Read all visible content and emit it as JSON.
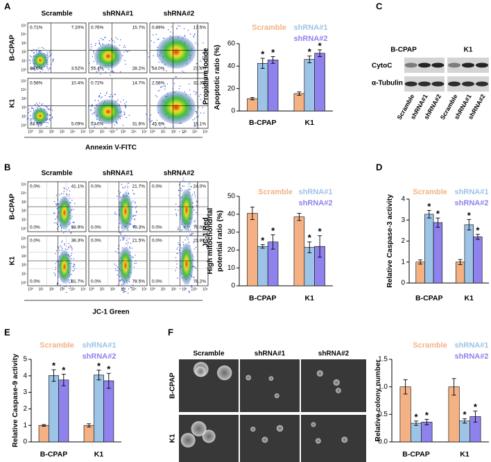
{
  "panel_labels": [
    "A",
    "B",
    "C",
    "D",
    "E",
    "F"
  ],
  "flow": [
    {
      "column_headers": [
        "Scramble",
        "shRNA#1",
        "shRNA#2"
      ],
      "row_labels": [
        "B-CPAP",
        "K1"
      ],
      "quadrants": [
        [
          [
            "0.71%",
            "7.20%",
            "88.6%",
            "3.52%"
          ],
          [
            "0.76%",
            "15.7%",
            "55.4%",
            "28.2%"
          ],
          [
            "0.89%",
            "17.5%",
            "54.0%",
            "27.6%"
          ]
        ],
        [
          [
            "0.58%",
            "10.4%",
            "83.9%",
            "5.09%"
          ],
          [
            "0.72%",
            "14.7%",
            "53.0%",
            "31.6%"
          ],
          [
            "2.58%",
            "32.3%",
            "45.9%",
            "19.1%"
          ]
        ]
      ],
      "tick_labels": [
        "10⁰",
        "10¹",
        "10²",
        "10³",
        "10⁴",
        "10⁵"
      ],
      "xlabel": "Annexin V-FITC",
      "ylabel": "Propidium Iodide"
    },
    {
      "column_headers": [
        "Scramble",
        "shRNA#1",
        "shRNA#2"
      ],
      "row_labels": [
        "B-CPAP",
        "K1"
      ],
      "quadrants": [
        [
          [
            "0.0%",
            "41.1%",
            "0.0%",
            "58.9%"
          ],
          [
            "0.0%",
            "21.7%",
            "0.0%",
            "78.3%"
          ],
          [
            "0.0%",
            "24.0%",
            "0.0%",
            "76.0%"
          ]
        ],
        [
          [
            "0.0%",
            "38.3%",
            "0.0%",
            "61.7%"
          ],
          [
            "0.0%",
            "21.5%",
            "0.0%",
            "78.5%"
          ],
          [
            "0.0%",
            "21.8%",
            "0.0%",
            "78.2%"
          ]
        ]
      ],
      "tick_labels": [
        "10⁰",
        "10¹",
        "10²",
        "10³",
        "10⁴",
        "10⁵"
      ],
      "xlabel": "JC-1 Green",
      "ylabel": "JC-1 Red"
    }
  ],
  "blot": {
    "cell_lines": [
      "B-CPAP",
      "K1"
    ],
    "proteins": [
      "CytoC",
      "α-Tubulin"
    ],
    "lanes": [
      "Scramble",
      "shRNA#1",
      "shRNA#2",
      "Scramble",
      "shRNA#1",
      "shRNA#2"
    ]
  },
  "colony": {
    "column_headers": [
      "Scramble",
      "shRNA#1",
      "shRNA#2"
    ],
    "row_labels": [
      "B-CPAP",
      "K1"
    ]
  },
  "chart_data": [
    {
      "type": "bar",
      "ylabel": [
        "Apoptotic ratio (%)"
      ],
      "categories": [
        "B-CPAP",
        "K1"
      ],
      "ylim": [
        0,
        60
      ],
      "yticks": [
        0,
        20,
        40,
        60
      ],
      "series": [
        {
          "name": "Scramble",
          "color": "#f4b183",
          "values": [
            11,
            15.5
          ],
          "errors": [
            1,
            1.5
          ]
        },
        {
          "name": "shRNA#1",
          "color": "#9dc3e6",
          "values": [
            42.5,
            46
          ],
          "errors": [
            4.5,
            3
          ],
          "marker_label": "*"
        },
        {
          "name": "shRNA#2",
          "color": "#8f82ec",
          "values": [
            45.5,
            51.5
          ],
          "errors": [
            3,
            3
          ],
          "marker_label": "*"
        }
      ]
    },
    {
      "type": "bar",
      "ylabel": [
        "High mitochondrial",
        "potential ratio (%)"
      ],
      "categories": [
        "B-CPAP",
        "K1"
      ],
      "ylim": [
        0,
        50
      ],
      "yticks": [
        0,
        10,
        20,
        30,
        40,
        50
      ],
      "series": [
        {
          "name": "Scramble",
          "color": "#f4b183",
          "values": [
            40.5,
            38.5
          ],
          "errors": [
            3.5,
            2
          ]
        },
        {
          "name": "shRNA#1",
          "color": "#9dc3e6",
          "values": [
            22,
            21.5
          ],
          "errors": [
            1,
            3
          ],
          "marker_label": "*"
        },
        {
          "name": "shRNA#2",
          "color": "#8f82ec",
          "values": [
            24.5,
            22
          ],
          "errors": [
            4,
            6
          ],
          "marker_label": "*"
        }
      ]
    },
    {
      "type": "bar",
      "ylabel": [
        "Relative Caspase-3 activity"
      ],
      "categories": [
        "B-CPAP",
        "K1"
      ],
      "ylim": [
        0,
        4
      ],
      "yticks": [
        0,
        1,
        2,
        3,
        4
      ],
      "series": [
        {
          "name": "Scramble",
          "color": "#f4b183",
          "values": [
            1,
            1
          ],
          "errors": [
            0.1,
            0.12
          ]
        },
        {
          "name": "shRNA#1",
          "color": "#9dc3e6",
          "values": [
            3.28,
            2.78
          ],
          "errors": [
            0.18,
            0.25
          ],
          "marker_label": "*"
        },
        {
          "name": "shRNA#2",
          "color": "#8f82ec",
          "values": [
            2.88,
            2.2
          ],
          "errors": [
            0.22,
            0.12
          ],
          "marker_label": "*"
        }
      ]
    },
    {
      "type": "bar",
      "ylabel": [
        "Relative Caspase-9 activity"
      ],
      "categories": [
        "B-CPAP",
        "K1"
      ],
      "ylim": [
        0,
        5
      ],
      "yticks": [
        0,
        1,
        2,
        3,
        4,
        5
      ],
      "series": [
        {
          "name": "Scramble",
          "color": "#f4b183",
          "values": [
            1,
            1
          ],
          "errors": [
            0.05,
            0.1
          ]
        },
        {
          "name": "shRNA#1",
          "color": "#9dc3e6",
          "values": [
            4.02,
            4.05
          ],
          "errors": [
            0.35,
            0.3
          ],
          "marker_label": "*"
        },
        {
          "name": "shRNA#2",
          "color": "#8f82ec",
          "values": [
            3.75,
            3.7
          ],
          "errors": [
            0.35,
            0.45
          ],
          "marker_label": "*"
        }
      ]
    },
    {
      "type": "bar",
      "ylabel": [
        "Relative colony number"
      ],
      "categories": [
        "B-CPAP",
        "K1"
      ],
      "ylim": [
        0,
        1.5
      ],
      "yticks": [
        {
          "value": 0,
          "label": "0.0"
        },
        0.5,
        {
          "value": 1,
          "label": "1.0"
        },
        1.5
      ],
      "series": [
        {
          "name": "Scramble",
          "color": "#f4b183",
          "values": [
            1.0,
            1.0
          ],
          "errors": [
            0.13,
            0.15
          ]
        },
        {
          "name": "shRNA#1",
          "color": "#9dc3e6",
          "values": [
            0.34,
            0.38
          ],
          "errors": [
            0.04,
            0.04
          ],
          "marker_label": "*"
        },
        {
          "name": "shRNA#2",
          "color": "#8f82ec",
          "values": [
            0.36,
            0.46
          ],
          "errors": [
            0.05,
            0.1
          ],
          "marker_label": "*"
        }
      ]
    }
  ]
}
